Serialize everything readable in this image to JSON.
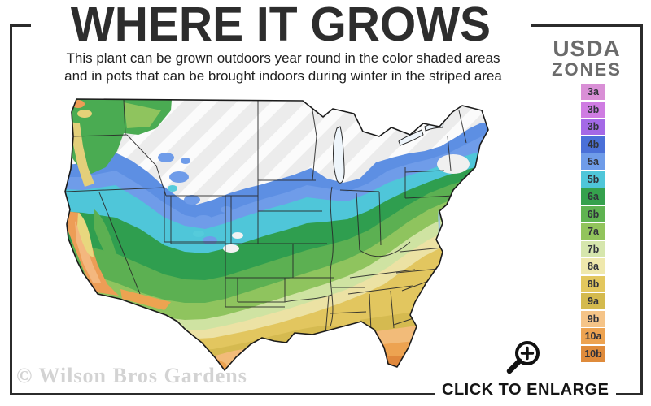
{
  "header": {
    "title": "WHERE IT GROWS",
    "subtitle_line1": "This plant can be grown outdoors year round in the color shaded areas",
    "subtitle_line2": "and in pots that can be brought indoors during winter in the striped area"
  },
  "legend": {
    "title_line1": "USDA",
    "title_line2": "ZONES",
    "zones": [
      {
        "label": "3a",
        "color": "#d98fd6"
      },
      {
        "label": "3b",
        "color": "#cf7ce2"
      },
      {
        "label": "3b",
        "color": "#a469e6"
      },
      {
        "label": "4b",
        "color": "#4a70d8"
      },
      {
        "label": "5a",
        "color": "#6f9ce9"
      },
      {
        "label": "5b",
        "color": "#4fc6d9"
      },
      {
        "label": "6a",
        "color": "#35a14d"
      },
      {
        "label": "6b",
        "color": "#5fb351"
      },
      {
        "label": "7a",
        "color": "#92c45c"
      },
      {
        "label": "7b",
        "color": "#d6e6ad"
      },
      {
        "label": "8a",
        "color": "#efe8ad"
      },
      {
        "label": "8b",
        "color": "#e3c75e"
      },
      {
        "label": "9a",
        "color": "#d4ba4e"
      },
      {
        "label": "9b",
        "color": "#f5c488"
      },
      {
        "label": "10a",
        "color": "#eda351"
      },
      {
        "label": "10b",
        "color": "#df8b3b"
      }
    ]
  },
  "map": {
    "name": "us-hardiness-zone-map",
    "striped_area_color": "#ececec",
    "outline_color": "#1b1b1b"
  },
  "footer": {
    "watermark": "© Wilson Bros Gardens",
    "enlarge_label": "CLICK TO ENLARGE",
    "enlarge_icon": "magnifier-plus-icon"
  },
  "colors": {
    "frame_border": "#2b2b2b",
    "title_text": "#2d2d2d",
    "legend_title_text": "#6b6b6b",
    "watermark_text": "#d3d3d3"
  }
}
